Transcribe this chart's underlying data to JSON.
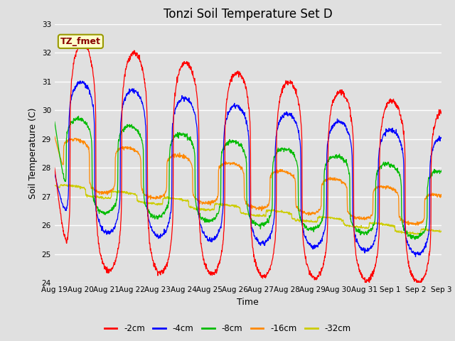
{
  "title": "Tonzi Soil Temperature Set D",
  "xlabel": "Time",
  "ylabel": "Soil Temperature (C)",
  "ylim": [
    24.0,
    33.0
  ],
  "yticks": [
    24.0,
    25.0,
    26.0,
    27.0,
    28.0,
    29.0,
    30.0,
    31.0,
    32.0,
    33.0
  ],
  "xtick_labels": [
    "Aug 19",
    "Aug 20",
    "Aug 21",
    "Aug 22",
    "Aug 23",
    "Aug 24",
    "Aug 25",
    "Aug 26",
    "Aug 27",
    "Aug 28",
    "Aug 29",
    "Aug 30",
    "Aug 31",
    "Sep 1",
    "Sep 2",
    "Sep 3"
  ],
  "series_colors": [
    "#ff0000",
    "#0000ff",
    "#00bb00",
    "#ff8800",
    "#cccc00"
  ],
  "series_labels": [
    "-2cm",
    "-4cm",
    "-8cm",
    "-16cm",
    "-32cm"
  ],
  "legend_label": "TZ_fmet",
  "bg_color": "#e0e0e0",
  "grid_color": "#ffffff",
  "n_days": 15,
  "pts_per_day": 96,
  "tick_fontsize": 7.5,
  "label_fontsize": 9,
  "title_fontsize": 12
}
